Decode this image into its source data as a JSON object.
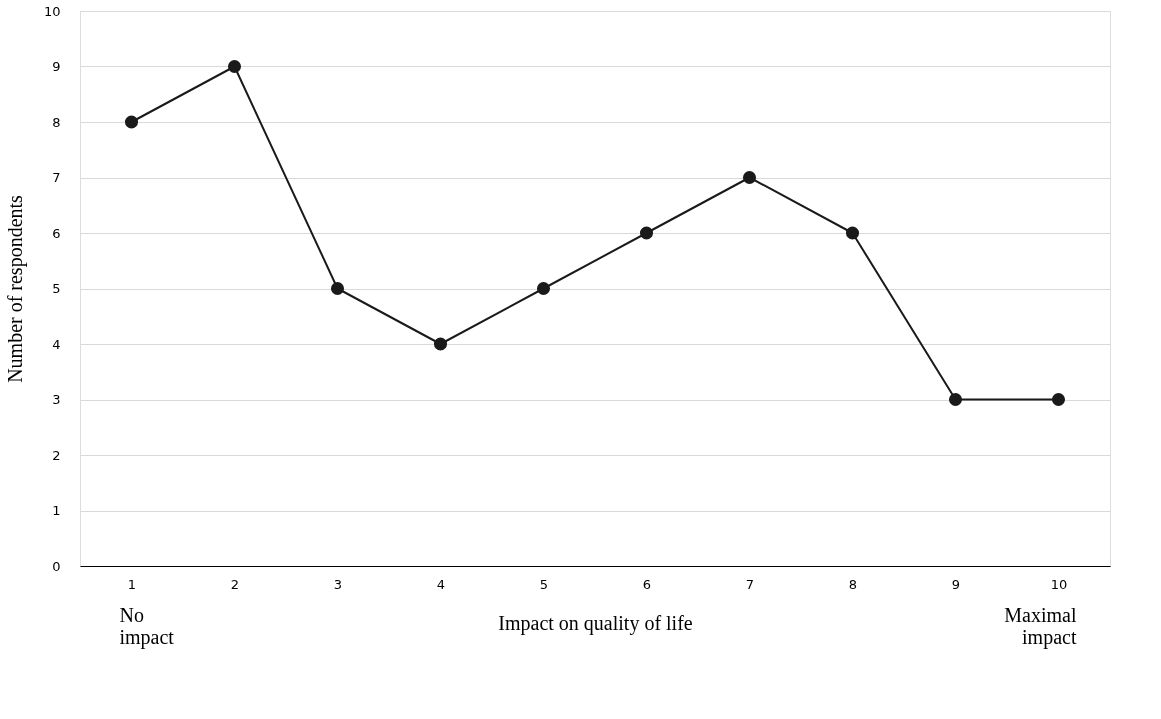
{
  "chart_data": {
    "type": "line",
    "xlabel": "Impact on quality of life",
    "ylabel": "Number of  respondents",
    "categories": [
      "1",
      "2",
      "3",
      "4",
      "5",
      "6",
      "7",
      "8",
      "9",
      "10"
    ],
    "series": [
      {
        "color": "#1a1a1a",
        "values": [
          8,
          9,
          5,
          4,
          5,
          6,
          7,
          6,
          3,
          3
        ]
      }
    ],
    "ylim": [
      0,
      10
    ],
    "yticks": [
      0,
      1,
      2,
      3,
      4,
      5,
      6,
      7,
      8,
      9,
      10
    ],
    "grid": "y",
    "marker": "circle",
    "line_style": "solid",
    "annotations": [
      "No impact",
      "Maximal impact"
    ]
  }
}
